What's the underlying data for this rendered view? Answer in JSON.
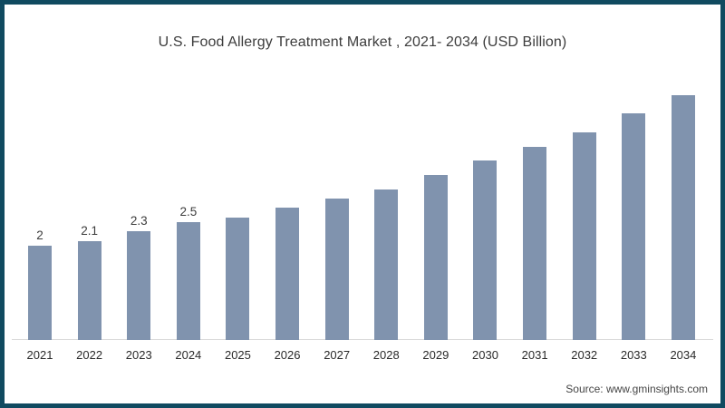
{
  "frame": {
    "border_color": "#104a60",
    "background_color": "#ffffff"
  },
  "title": "U.S. Food Allergy Treatment Market , 2021- 2034 (USD Billion)",
  "source": "Source: www.gminsights.com",
  "chart_data": {
    "type": "bar",
    "title": "U.S. Food Allergy Treatment Market , 2021- 2034 (USD Billion)",
    "categories": [
      "2021",
      "2022",
      "2023",
      "2024",
      "2025",
      "2026",
      "2027",
      "2028",
      "2029",
      "2030",
      "2031",
      "2032",
      "2033",
      "2034"
    ],
    "values": [
      2,
      2.1,
      2.3,
      2.5,
      2.6,
      2.8,
      3.0,
      3.2,
      3.5,
      3.8,
      4.1,
      4.4,
      4.8,
      5.2
    ],
    "data_labels": [
      "2",
      "2.1",
      "2.3",
      "2.5",
      "",
      "",
      "",
      "",
      "",
      "",
      "",
      "",
      "",
      ""
    ],
    "xlabel": "",
    "ylabel": "",
    "ylim": [
      0,
      5.5
    ],
    "grid": false,
    "legend": false,
    "bar_color": "#8093ae",
    "axis_line_color": "#d9d9d9",
    "title_color": "#3c3c3c",
    "label_color": "#3c3c3c",
    "tick_label_color": "#2a2a2a"
  }
}
